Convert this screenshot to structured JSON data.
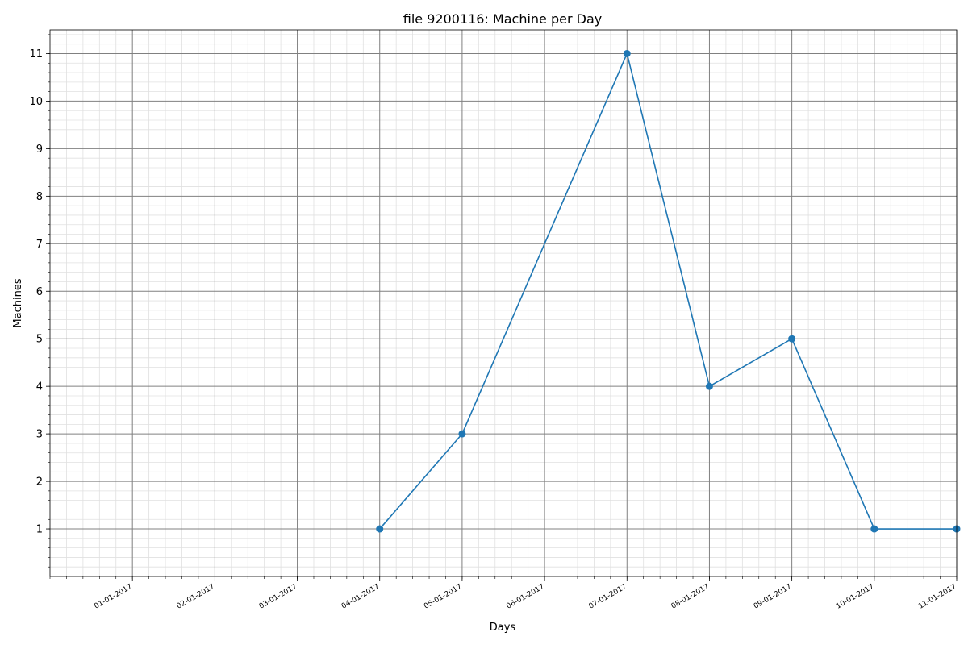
{
  "chart_data": {
    "type": "line",
    "title": "file 9200116: Machine per Day",
    "xlabel": "Days",
    "ylabel": "Machines",
    "x_tick_labels": [
      "01-01-2017",
      "02-01-2017",
      "03-01-2017",
      "04-01-2017",
      "05-01-2017",
      "06-01-2017",
      "07-01-2017",
      "08-01-2017",
      "09-01-2017",
      "10-01-2017",
      "11-01-2017"
    ],
    "y_ticks": [
      1,
      2,
      3,
      4,
      5,
      6,
      7,
      8,
      9,
      10,
      11
    ],
    "xlim": [
      "2016-12-31",
      "2017-01-11"
    ],
    "ylim": [
      0,
      11.5
    ],
    "grid": {
      "major": true,
      "minor": true
    },
    "series": [
      {
        "color": "#1f77b4",
        "marker": "circle",
        "points": [
          {
            "x": "2017-01-04",
            "y": 1
          },
          {
            "x": "2017-01-05",
            "y": 3
          },
          {
            "x": "2017-01-07",
            "y": 11
          },
          {
            "x": "2017-01-08",
            "y": 4
          },
          {
            "x": "2017-01-09",
            "y": 5
          },
          {
            "x": "2017-01-10",
            "y": 1
          },
          {
            "x": "2017-01-11",
            "y": 1
          }
        ]
      }
    ]
  }
}
